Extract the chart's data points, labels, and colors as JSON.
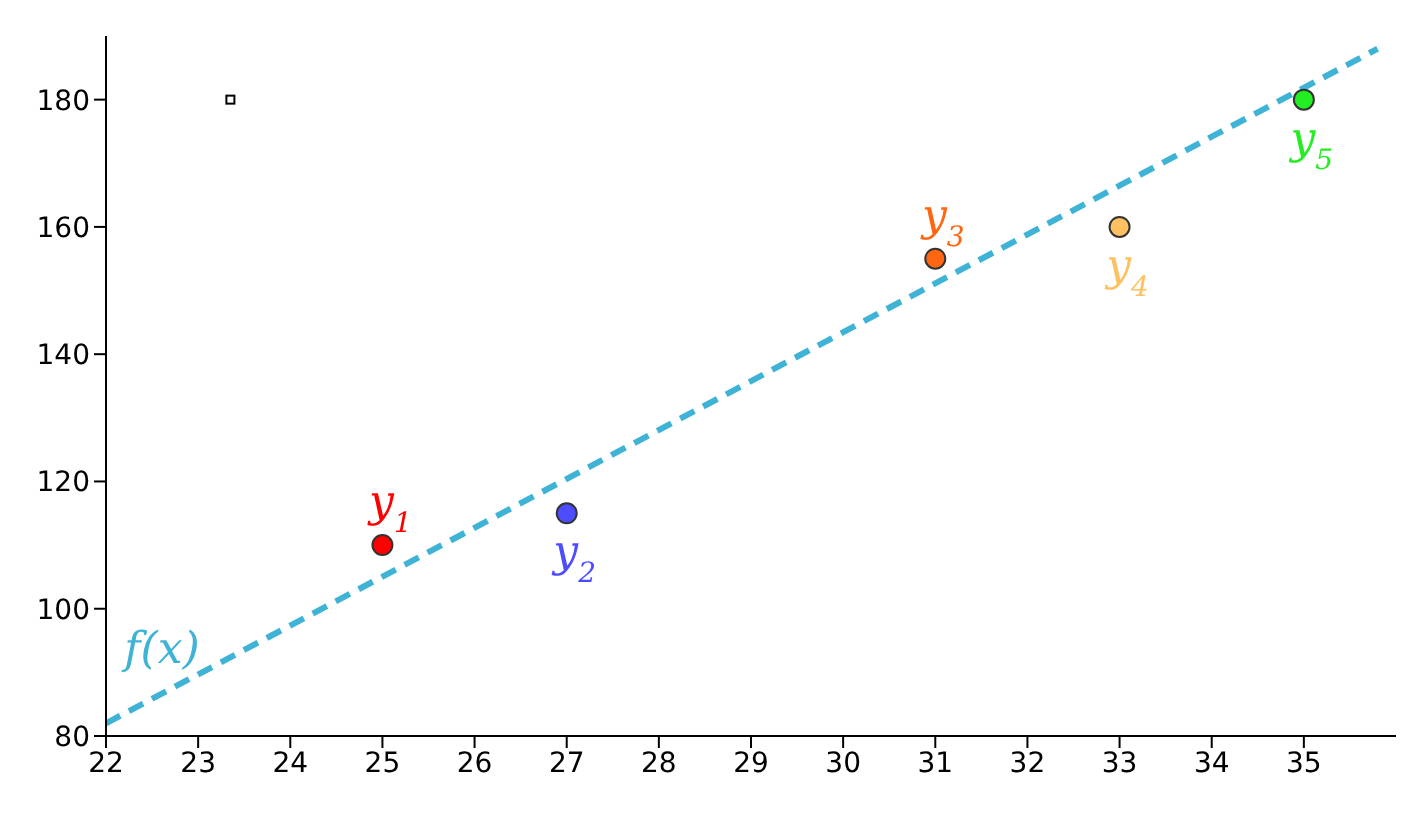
{
  "chart_data": {
    "type": "scatter",
    "xlim": [
      22,
      36
    ],
    "ylim": [
      80,
      190
    ],
    "xticks": [
      22,
      23,
      24,
      25,
      26,
      27,
      28,
      29,
      30,
      31,
      32,
      33,
      34,
      35
    ],
    "yticks": [
      80,
      100,
      120,
      140,
      160,
      180
    ],
    "grid": false,
    "legend": false,
    "marker": "circle",
    "series": [
      {
        "name": "y$_{1}$",
        "color": "#ff0000",
        "x": [
          25
        ],
        "values": [
          110
        ]
      },
      {
        "name": "y$_{2}$",
        "color": "#4d4dff",
        "x": [
          27
        ],
        "values": [
          115
        ]
      },
      {
        "name": "y$_{3}$",
        "color": "#ff6611",
        "x": [
          31
        ],
        "values": [
          155
        ]
      },
      {
        "name": "y$_{4}$",
        "color": "#ffc060",
        "x": [
          33
        ],
        "values": [
          160
        ]
      },
      {
        "name": "y$_{5}$",
        "color": "#22ee22",
        "x": [
          35
        ],
        "values": [
          180
        ]
      },
      {
        "color": "#000000",
        "marker": "square",
        "x": [
          23.35
        ],
        "values": [
          180
        ]
      },
      {
        "name": "f(x)",
        "type": "line",
        "marker": "none",
        "line_style": "dashed",
        "color": "#3fb3d6",
        "x": [
          22,
          35.8
        ],
        "values": [
          82,
          188
        ]
      }
    ]
  }
}
